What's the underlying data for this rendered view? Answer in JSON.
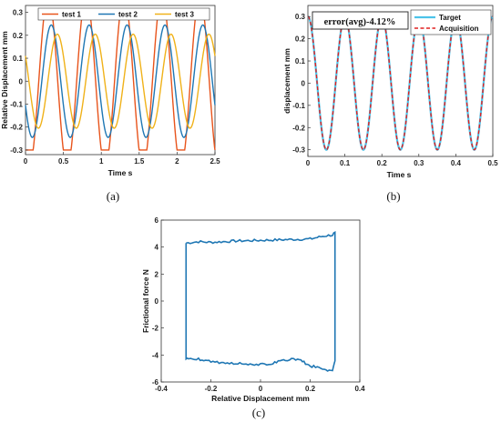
{
  "chart_data": [
    {
      "panel": "a",
      "type": "line",
      "caption": "(a)",
      "xlabel": "Time s",
      "ylabel": "Relative Displacement mm",
      "xlim": [
        0,
        2.5
      ],
      "ylim": [
        -0.32,
        0.33
      ],
      "xticks": [
        0,
        0.5,
        1,
        1.5,
        2,
        2.5
      ],
      "xtick_labels": [
        "0",
        "0.5",
        "1",
        "1.5",
        "2",
        "2.5"
      ],
      "yticks": [
        -0.3,
        -0.2,
        -0.1,
        0,
        0.1,
        0.2,
        0.3
      ],
      "ytick_labels": [
        "-0.3",
        "-0.2",
        "-0.1",
        "0",
        "0.1",
        "0.2",
        "0.3"
      ],
      "legend": "top",
      "series": [
        {
          "name": "test 1",
          "color": "#e8541c",
          "amplitude": 0.3,
          "period": 0.5,
          "peak_times": [
            0.3,
            0.8,
            1.3,
            1.8,
            2.3
          ],
          "shape": "flattened-sine"
        },
        {
          "name": "test 2",
          "color": "#1f77b4",
          "amplitude": 0.245,
          "period": 0.5,
          "peak_times": [
            0.34,
            0.84,
            1.34,
            1.84,
            2.34
          ],
          "shape": "sine"
        },
        {
          "name": "test 3",
          "color": "#f0b21a",
          "amplitude": 0.205,
          "period": 0.5,
          "peak_times": [
            0.42,
            0.92,
            1.42,
            1.92,
            2.42
          ],
          "shape": "sine"
        }
      ]
    },
    {
      "panel": "b",
      "type": "line",
      "caption": "(b)",
      "xlabel": "Time s",
      "ylabel": "displacement mm",
      "annotation": "error(avg)-4.12%",
      "xlim": [
        0,
        0.5
      ],
      "ylim": [
        -0.33,
        0.35
      ],
      "xticks": [
        0,
        0.1,
        0.2,
        0.3,
        0.4,
        0.5
      ],
      "xtick_labels": [
        "0",
        "0.1",
        "0.2",
        "0.3",
        "0.4",
        "0.5"
      ],
      "yticks": [
        -0.3,
        -0.2,
        -0.1,
        0,
        0.1,
        0.2,
        0.3
      ],
      "ytick_labels": [
        "-0.3",
        "-0.2",
        "-0.1",
        "0",
        "0.1",
        "0.2",
        "0.3"
      ],
      "legend": "top-right",
      "series": [
        {
          "name": "Target",
          "color": "#4cc3ea",
          "amplitude": 0.3,
          "frequency_hz": 10,
          "style": "solid"
        },
        {
          "name": "Acquisition",
          "color": "#e02020",
          "amplitude": 0.3,
          "frequency_hz": 10,
          "style": "dashed"
        }
      ]
    },
    {
      "panel": "c",
      "type": "line",
      "caption": "(c)",
      "xlabel": "Relative Displacement mm",
      "ylabel": "Frictional force N",
      "xlim": [
        -0.4,
        0.4
      ],
      "ylim": [
        -6,
        6
      ],
      "xticks": [
        -0.4,
        -0.2,
        0,
        0.2,
        0.4
      ],
      "xtick_labels": [
        "-0.4",
        "-0.2",
        "0",
        "0.2",
        "0.4"
      ],
      "yticks": [
        -6,
        -4,
        -2,
        0,
        2,
        4,
        6
      ],
      "ytick_labels": [
        "-6",
        "-4",
        "-2",
        "0",
        "2",
        "4",
        "6"
      ],
      "series": [
        {
          "color": "#1f77b4",
          "x": [
            -0.3,
            -0.25,
            -0.2,
            -0.1,
            0,
            0.1,
            0.2,
            0.25,
            0.29,
            0.3,
            0.3,
            0.29,
            0.25,
            0.2,
            0.15,
            0.1,
            0.05,
            0,
            -0.1,
            -0.2,
            -0.25,
            -0.29,
            -0.3,
            -0.3
          ],
          "y": [
            4.3,
            4.4,
            4.35,
            4.45,
            4.5,
            4.55,
            4.6,
            4.8,
            4.9,
            5.1,
            -4.5,
            -5.2,
            -5.0,
            -4.8,
            -4.3,
            -4.35,
            -4.6,
            -4.7,
            -4.6,
            -4.5,
            -4.3,
            -4.2,
            -4.3,
            4.3
          ]
        }
      ]
    }
  ]
}
